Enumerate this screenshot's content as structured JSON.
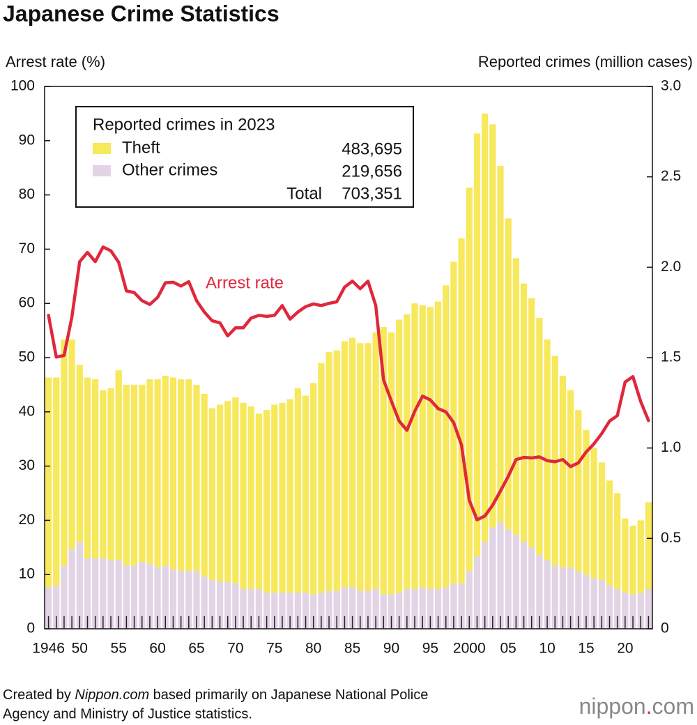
{
  "chart_data": {
    "type": "bar",
    "title": "Japanese Crime Statistics",
    "y_label": "Arrest rate (%)",
    "y2_label": "Reported crimes (million cases)",
    "categories": [
      "1946",
      null,
      null,
      null,
      "50",
      null,
      null,
      null,
      null,
      "55",
      null,
      null,
      null,
      null,
      "60",
      null,
      null,
      null,
      null,
      "65",
      null,
      null,
      null,
      null,
      "70",
      null,
      null,
      null,
      null,
      "75",
      null,
      null,
      null,
      null,
      "80",
      null,
      null,
      null,
      null,
      "85",
      null,
      null,
      null,
      null,
      "90",
      null,
      null,
      null,
      null,
      "95",
      null,
      null,
      null,
      null,
      "2000",
      null,
      null,
      null,
      null,
      "05",
      null,
      null,
      null,
      null,
      "10",
      null,
      null,
      null,
      null,
      "15",
      null,
      null,
      null,
      null,
      "20",
      null,
      null,
      null
    ],
    "ylim": [
      0,
      100
    ],
    "yticks": [
      0,
      10,
      20,
      30,
      40,
      50,
      60,
      70,
      80,
      90,
      100
    ],
    "y2lim": [
      0,
      3
    ],
    "y2ticks": [
      0,
      0.5,
      {
        "value": 1,
        "label": "1.0"
      },
      1.5,
      {
        "value": 2,
        "label": "2.0"
      },
      2.5,
      {
        "value": 3,
        "label": "3.0"
      }
    ],
    "grid": false,
    "series": [
      {
        "name": "Other crimes",
        "color": "#e2d3e5",
        "axis": "y2",
        "values": [
          0.23,
          0.24,
          0.35,
          0.44,
          0.48,
          0.39,
          0.39,
          0.39,
          0.38,
          0.38,
          0.35,
          0.35,
          0.37,
          0.36,
          0.34,
          0.35,
          0.33,
          0.32,
          0.32,
          0.32,
          0.29,
          0.27,
          0.26,
          0.26,
          0.25,
          0.22,
          0.22,
          0.22,
          0.2,
          0.2,
          0.2,
          0.2,
          0.2,
          0.2,
          0.19,
          0.2,
          0.21,
          0.21,
          0.23,
          0.23,
          0.21,
          0.21,
          0.22,
          0.19,
          0.19,
          0.2,
          0.22,
          0.22,
          0.23,
          0.22,
          0.22,
          0.23,
          0.25,
          0.25,
          0.32,
          0.4,
          0.48,
          0.56,
          0.59,
          0.55,
          0.52,
          0.48,
          0.45,
          0.41,
          0.38,
          0.35,
          0.34,
          0.34,
          0.32,
          0.3,
          0.28,
          0.27,
          0.24,
          0.22,
          0.2,
          0.19,
          0.2,
          0.22
        ]
      },
      {
        "name": "Theft",
        "color": "#f7e85c",
        "axis": "y2",
        "values": [
          1.16,
          1.15,
          1.25,
          1.16,
          0.98,
          1.0,
          0.99,
          0.93,
          0.95,
          1.05,
          1.0,
          1.0,
          0.98,
          1.02,
          1.04,
          1.05,
          1.06,
          1.06,
          1.06,
          1.03,
          1.01,
          0.95,
          0.98,
          1.0,
          1.03,
          1.03,
          1.01,
          0.97,
          1.01,
          1.04,
          1.05,
          1.07,
          1.13,
          1.09,
          1.17,
          1.27,
          1.32,
          1.33,
          1.36,
          1.38,
          1.37,
          1.37,
          1.42,
          1.48,
          1.45,
          1.51,
          1.52,
          1.58,
          1.56,
          1.56,
          1.59,
          1.67,
          1.78,
          1.91,
          2.12,
          2.34,
          2.37,
          2.23,
          1.97,
          1.72,
          1.53,
          1.43,
          1.38,
          1.31,
          1.22,
          1.16,
          1.06,
          0.98,
          0.89,
          0.8,
          0.72,
          0.65,
          0.58,
          0.53,
          0.41,
          0.38,
          0.4,
          0.48
        ]
      },
      {
        "name": "Arrest rate",
        "color": "#e0283c",
        "type": "line",
        "values": [
          57.8,
          50.1,
          50.4,
          57.5,
          67.7,
          69.4,
          67.7,
          70.4,
          69.7,
          67.6,
          62.3,
          62.0,
          60.5,
          59.8,
          61.1,
          63.8,
          63.9,
          63.2,
          64.0,
          60.5,
          58.4,
          56.8,
          56.4,
          54.0,
          55.5,
          55.5,
          57.3,
          57.8,
          57.6,
          57.8,
          59.6,
          57.1,
          58.4,
          59.4,
          59.9,
          59.6,
          60.0,
          60.3,
          63.0,
          64.1,
          62.7,
          64.1,
          59.6,
          45.9,
          42.0,
          38.3,
          36.6,
          40.1,
          42.9,
          42.2,
          40.6,
          40.0,
          38.0,
          33.9,
          23.7,
          20.1,
          20.8,
          22.8,
          25.4,
          28.1,
          31.2,
          31.6,
          31.5,
          31.7,
          31.0,
          30.8,
          31.2,
          29.9,
          30.6,
          32.6,
          34.1,
          36.0,
          38.3,
          39.3,
          45.5,
          46.5,
          41.9,
          38.4
        ]
      }
    ],
    "legend": {
      "title": "Reported crimes in 2023",
      "values": [
        483695,
        219656
      ],
      "value_labels": [
        "483,695",
        "219,656"
      ],
      "total_name": "Total",
      "total": {
        "value": 703351,
        "label": "703,351"
      }
    },
    "source": [
      "Created by ",
      "Nippon.com",
      " based primarily on Japanese National Police",
      "Agency and Ministry of Justice statistics."
    ],
    "logo": [
      "nippon",
      ".",
      "com"
    ]
  }
}
